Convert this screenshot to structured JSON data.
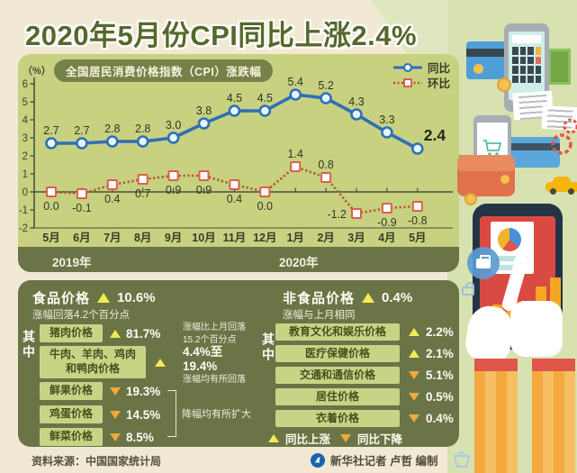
{
  "title": "2020年5月份CPI同比上涨2.4%",
  "chart_data": {
    "type": "line",
    "title": "全国居民消费价格指数（CPI）涨跌幅",
    "unit_label": "（%）",
    "x": [
      "5月",
      "6月",
      "7月",
      "8月",
      "9月",
      "10月",
      "11月",
      "12月",
      "1月",
      "2月",
      "3月",
      "4月",
      "5月"
    ],
    "year_labels": {
      "left": "2019年",
      "right": "2020年"
    },
    "ylim": [
      -2,
      6
    ],
    "yticks": [
      6,
      5,
      4,
      3,
      2,
      1,
      0,
      -1,
      -2
    ],
    "grid": false,
    "legend_position": "top-right",
    "series": [
      {
        "name": "同比",
        "color": "#2e6fb7",
        "style": "solid",
        "marker": "circle",
        "values": [
          2.7,
          2.7,
          2.8,
          2.8,
          3.0,
          3.8,
          4.5,
          4.5,
          5.4,
          5.2,
          4.3,
          3.3,
          2.4
        ],
        "labels": [
          "2.7",
          "2.7",
          "2.8",
          "2.8",
          "3.0",
          "3.8",
          "4.5",
          "4.5",
          "5.4",
          "5.2",
          "4.3",
          "3.3",
          "2.4"
        ]
      },
      {
        "name": "环比",
        "color": "#b2562f",
        "style": "dotted",
        "marker": "square",
        "values": [
          0.0,
          -0.1,
          0.4,
          0.7,
          0.9,
          0.9,
          0.4,
          0.0,
          1.4,
          0.8,
          -1.2,
          -0.9,
          -0.8
        ],
        "labels": [
          "0.0",
          "-0.1",
          "0.4",
          "0.7",
          "0.9",
          "0.9",
          "0.4",
          "0.0",
          "1.4",
          "0.8",
          "-1.2",
          "-0.9",
          "-0.8"
        ],
        "label_above_indices": [
          8,
          9
        ]
      }
    ]
  },
  "food": {
    "title": "食品价格",
    "direction": "up",
    "value": "10.6%",
    "note": "涨幅回落4.2个百分点",
    "group_label": "其中",
    "items": [
      {
        "name": "猪肉价格",
        "direction": "up",
        "value": "81.7%",
        "note": "涨幅比上月回落15.2个百分点"
      },
      {
        "name": "牛肉、羊肉、鸡肉和鸭肉价格",
        "direction": "up",
        "note_value": "4.4%至19.4%",
        "note": "涨幅均有所回落"
      },
      {
        "name": "鲜果价格",
        "direction": "down",
        "value": "19.3%"
      },
      {
        "name": "鸡蛋价格",
        "direction": "down",
        "value": "14.5%"
      },
      {
        "name": "鲜菜价格",
        "direction": "down",
        "value": "8.5%"
      }
    ],
    "bracket_note": "降幅均有所扩大"
  },
  "nonfood": {
    "title": "非食品价格",
    "direction": "up",
    "value": "0.4%",
    "note": "涨幅与上月相同",
    "group_label": "其中",
    "items": [
      {
        "name": "教育文化和娱乐价格",
        "direction": "up",
        "value": "2.2%"
      },
      {
        "name": "医疗保健价格",
        "direction": "up",
        "value": "2.1%"
      },
      {
        "name": "交通和通信价格",
        "direction": "down",
        "value": "5.1%"
      },
      {
        "name": "居住价格",
        "direction": "down",
        "value": "0.5%"
      },
      {
        "name": "衣着价格",
        "direction": "down",
        "value": "0.4%"
      }
    ]
  },
  "triangle_legend": {
    "up": "同比上涨",
    "down": "同比下降"
  },
  "footer": {
    "source": "资料来源：中国国家统计局",
    "credit": "新华社记者 卢哲 编制"
  },
  "icons": {
    "up_triangle": "yellow ▲ = year-over-year rise",
    "down_triangle": "orange ▼ = year-over-year fall"
  },
  "colors": {
    "yoy_line": "#2e6fb7",
    "mom_line": "#b2562f",
    "up_triangle": "#f2ea52",
    "down_triangle": "#f0a93a",
    "panel_dark": "#6a7447",
    "panel_light": "#c7d180",
    "label_box": "#c9d386",
    "background": "#f2e9d4",
    "title_green": "#55682b"
  }
}
